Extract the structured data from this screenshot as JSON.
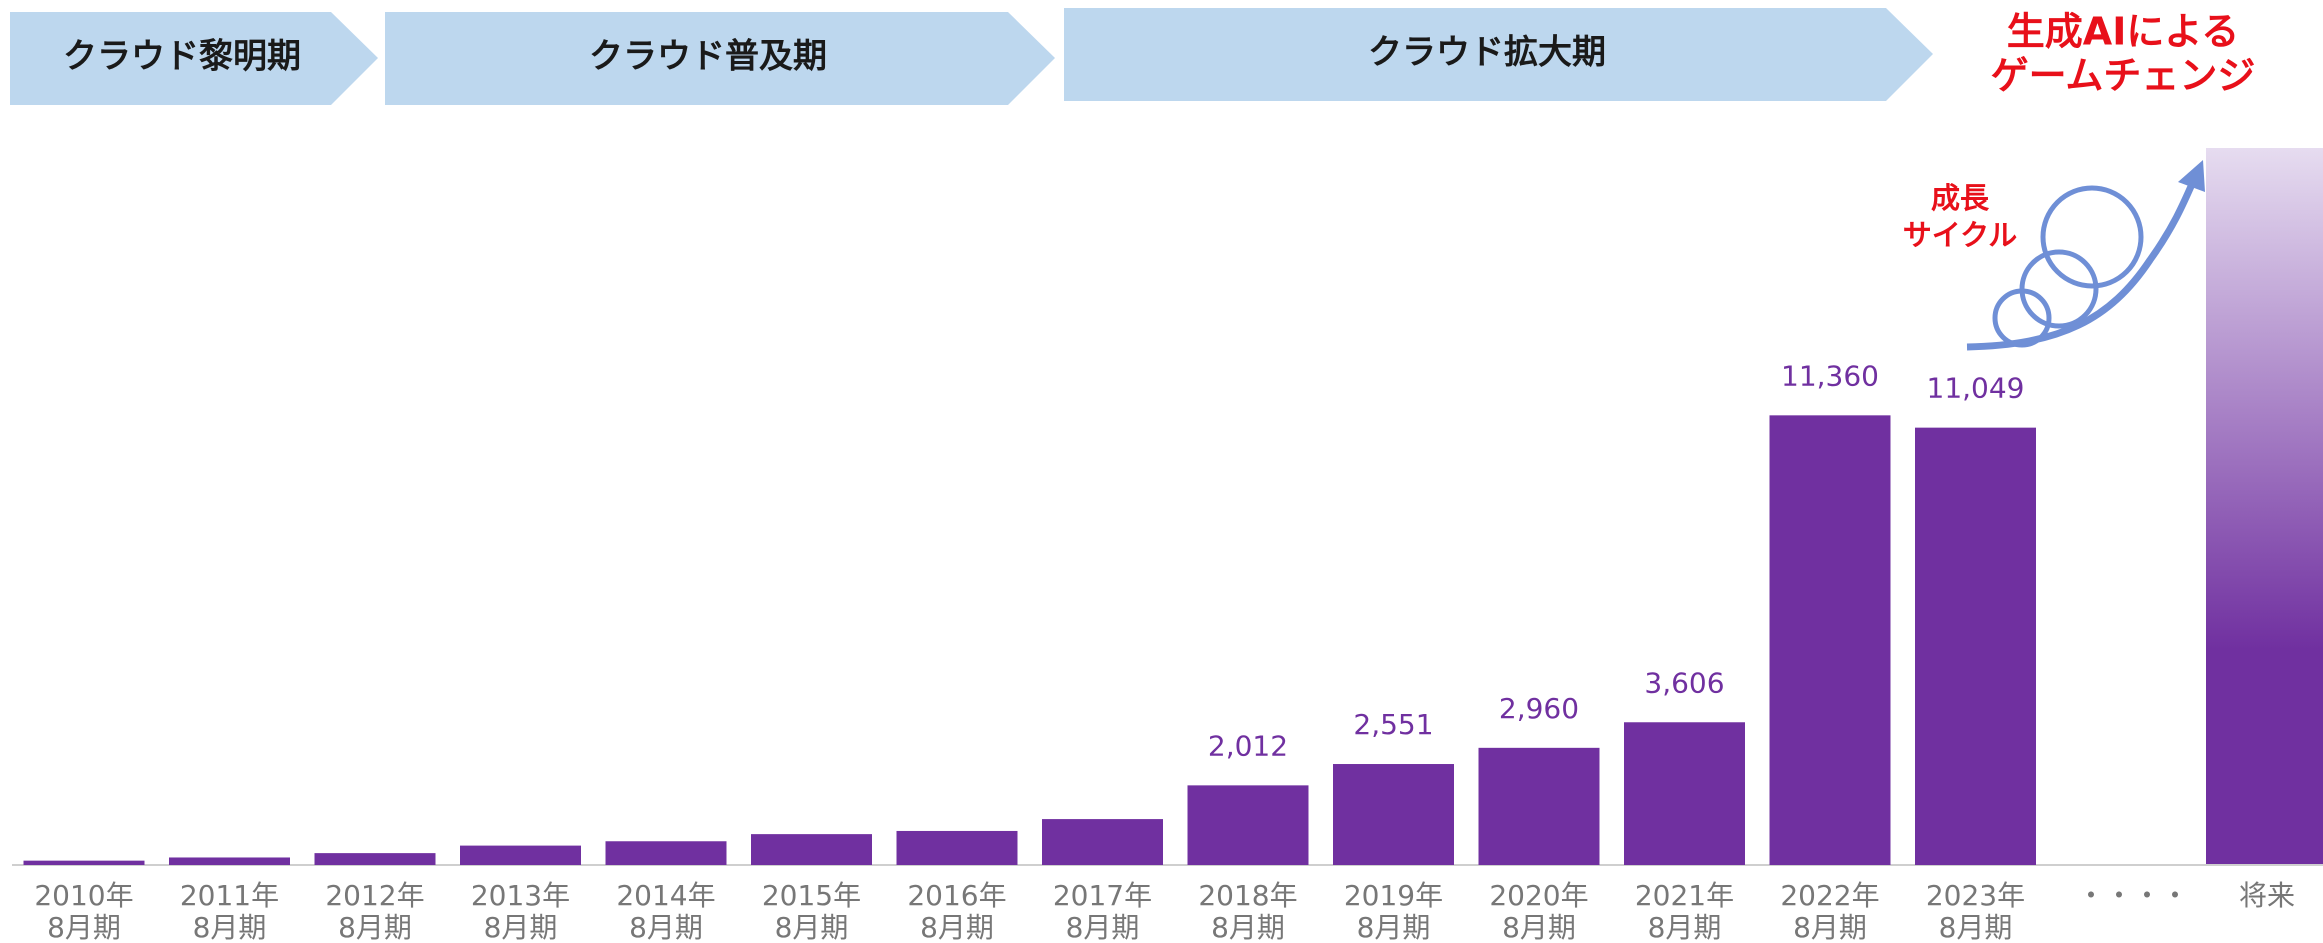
{
  "chart_data": {
    "type": "bar",
    "phases": [
      "クラウド黎明期",
      "クラウド普及期",
      "クラウド拡大期"
    ],
    "headline": [
      "生成AIによる",
      "ゲームチェンジ"
    ],
    "cycle_label": [
      "成長",
      "サイクル"
    ],
    "categories": [
      [
        "2010年",
        "8月期"
      ],
      [
        "2011年",
        "8月期"
      ],
      [
        "2012年",
        "8月期"
      ],
      [
        "2013年",
        "8月期"
      ],
      [
        "2014年",
        "8月期"
      ],
      [
        "2015年",
        "8月期"
      ],
      [
        "2016年",
        "8月期"
      ],
      [
        "2017年",
        "8月期"
      ],
      [
        "2018年",
        "8月期"
      ],
      [
        "2019年",
        "8月期"
      ],
      [
        "2020年",
        "8月期"
      ],
      [
        "2021年",
        "8月期"
      ],
      [
        "2022年",
        "8月期"
      ],
      [
        "2023年",
        "8月期"
      ]
    ],
    "values": [
      110,
      190,
      300,
      490,
      600,
      780,
      860,
      1160,
      2012,
      2551,
      2960,
      3606,
      11360,
      11049
    ],
    "value_labels": [
      null,
      null,
      null,
      null,
      null,
      null,
      null,
      null,
      "2,012",
      "2,551",
      "2,960",
      "3,606",
      "11,360",
      "11,049"
    ],
    "ellipsis_label": "・・・・",
    "future_label": "将来",
    "color": "#7030a0",
    "ylim": [
      0,
      12000
    ]
  }
}
